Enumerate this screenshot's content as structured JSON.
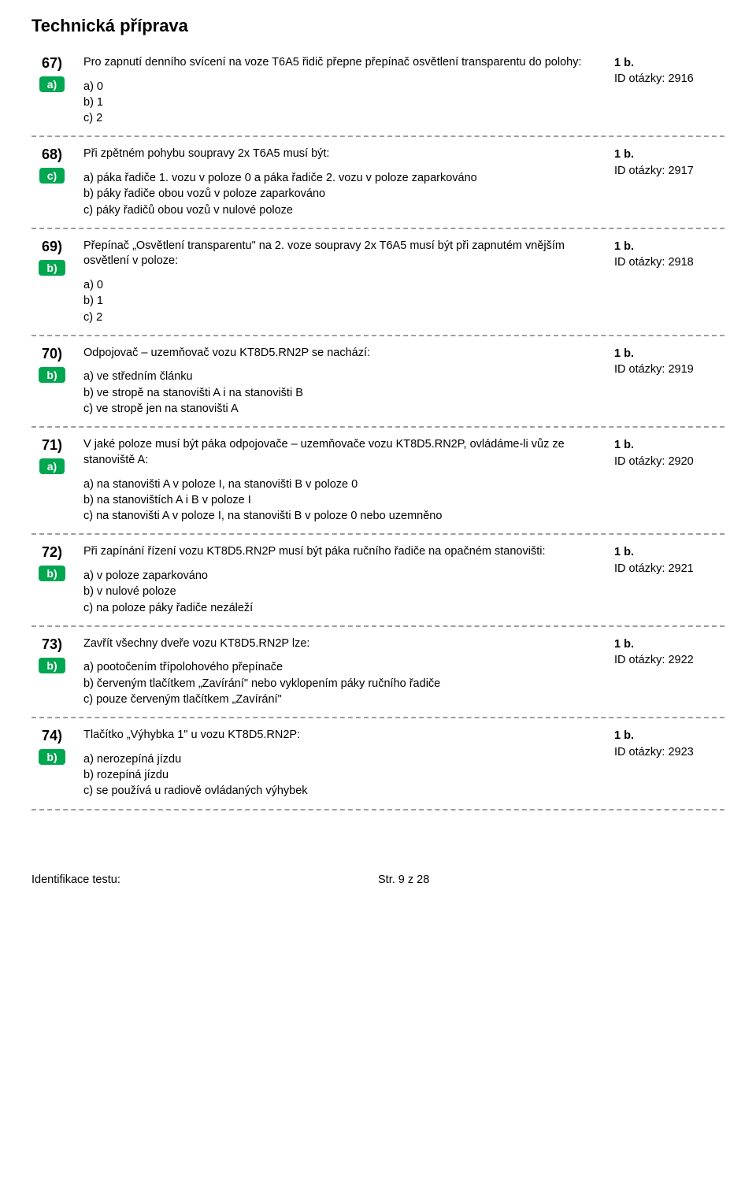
{
  "page": {
    "title": "Technická příprava",
    "footerLeft": "Identifikace testu:",
    "footerMid": "Str. 9 z 28"
  },
  "questions": [
    {
      "number": "67)",
      "answer": "a)",
      "text": "Pro zapnutí denního svícení na voze T6A5 řidič přepne přepínač osvětlení transparentu do polohy:",
      "options": [
        "a) 0",
        "b) 1",
        "c) 2"
      ],
      "points": "1 b.",
      "id": "ID otázky: 2916"
    },
    {
      "number": "68)",
      "answer": "c)",
      "text": "Při zpětném pohybu soupravy 2x T6A5 musí být:",
      "options": [
        "a) páka řadiče 1. vozu v poloze 0 a páka řadiče 2. vozu v poloze zaparkováno",
        "b) páky řadiče obou vozů v poloze zaparkováno",
        "c) páky řadičů obou vozů v nulové poloze"
      ],
      "points": "1 b.",
      "id": "ID otázky: 2917"
    },
    {
      "number": "69)",
      "answer": "b)",
      "text": "Přepínač „Osvětlení transparentu\" na 2. voze soupravy 2x T6A5 musí být při zapnutém vnějším osvětlení v poloze:",
      "options": [
        "a) 0",
        "b) 1",
        "c) 2"
      ],
      "points": "1 b.",
      "id": "ID otázky: 2918"
    },
    {
      "number": "70)",
      "answer": "b)",
      "text": "Odpojovač – uzemňovač vozu KT8D5.RN2P se nachází:",
      "options": [
        "a) ve středním článku",
        "b) ve stropě na stanovišti A i na stanovišti B",
        "c) ve stropě jen na stanovišti A"
      ],
      "points": "1 b.",
      "id": "ID otázky: 2919"
    },
    {
      "number": "71)",
      "answer": "a)",
      "text": "V jaké poloze musí být páka odpojovače – uzemňovače vozu KT8D5.RN2P, ovládáme-li vůz ze stanoviště A:",
      "options": [
        "a) na stanovišti A v poloze I, na stanovišti B v poloze 0",
        "b) na stanovištích A i B v poloze I",
        "c) na stanovišti A v poloze I, na stanovišti B v poloze 0 nebo uzemněno"
      ],
      "points": "1 b.",
      "id": "ID otázky: 2920"
    },
    {
      "number": "72)",
      "answer": "b)",
      "text": "Při zapínání řízení vozu KT8D5.RN2P musí být páka ručního řadiče na opačném stanovišti:",
      "options": [
        "a) v poloze zaparkováno",
        "b) v nulové poloze",
        "c) na poloze páky řadiče nezáleží"
      ],
      "points": "1 b.",
      "id": "ID otázky: 2921"
    },
    {
      "number": "73)",
      "answer": "b)",
      "text": "Zavřít všechny dveře vozu KT8D5.RN2P lze:",
      "options": [
        "a) pootočením třípolohového přepínače",
        "b) červeným tlačítkem „Zavírání\" nebo vyklopením páky ručního řadiče",
        "c) pouze červeným tlačítkem „Zavírání\""
      ],
      "points": "1 b.",
      "id": "ID otázky: 2922"
    },
    {
      "number": "74)",
      "answer": "b)",
      "text": "Tlačítko „Výhybka 1\" u vozu KT8D5.RN2P:",
      "options": [
        "a) nerozepíná jízdu",
        "b) rozepíná jízdu",
        "c) se používá u radiově ovládaných výhybek"
      ],
      "points": "1 b.",
      "id": "ID otázky: 2923"
    }
  ]
}
